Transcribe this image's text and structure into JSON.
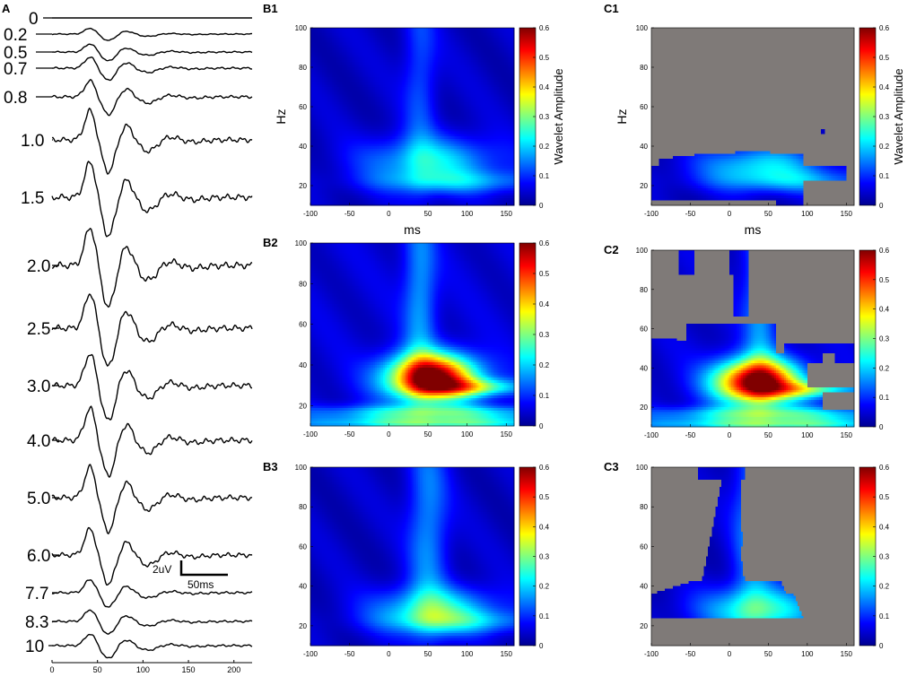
{
  "colors": {
    "nosig_gray": "#7f7a78",
    "trace": "#000000"
  },
  "panelA": {
    "label": "A",
    "xticks": [
      "0",
      "50",
      "100",
      "150",
      "200"
    ],
    "xlim": [
      0,
      220
    ],
    "scalebar": {
      "y_label": "2uV",
      "x_label": "50ms"
    },
    "traces": [
      {
        "label": "0",
        "amp": 0
      },
      {
        "label": "0.2",
        "amp": 0.2
      },
      {
        "label": "0.5",
        "amp": 0.28
      },
      {
        "label": "0.7",
        "amp": 0.38
      },
      {
        "label": "0.8",
        "amp": 0.55
      },
      {
        "label": "1.0",
        "amp": 1.0
      },
      {
        "label": "1.5",
        "amp": 1.2
      },
      {
        "label": "2.0",
        "amp": 1.3
      },
      {
        "label": "2.5",
        "amp": 1.2
      },
      {
        "label": "3.0",
        "amp": 1.1
      },
      {
        "label": "4.0",
        "amp": 1.1
      },
      {
        "label": "5.0",
        "amp": 1.05
      },
      {
        "label": "6.0",
        "amp": 0.9
      },
      {
        "label": "7.7",
        "amp": 0.45
      },
      {
        "label": "8.3",
        "amp": 0.4
      },
      {
        "label": "10",
        "amp": 0.4
      }
    ]
  },
  "heatmap_common": {
    "xticks": [
      "-100",
      "-50",
      "0",
      "50",
      "100",
      "150"
    ],
    "yticks": [
      "20",
      "40",
      "60",
      "80",
      "100"
    ],
    "cbticks": [
      "0",
      "0.1",
      "0.2",
      "0.3",
      "0.4",
      "0.5",
      "0.6"
    ],
    "xlabel": "ms",
    "ylabel": "Hz",
    "cblabel": "Wavelet Amplitude"
  },
  "chart_data": [
    {
      "type": "line",
      "title": "A",
      "xlabel": "",
      "ylabel": "",
      "xlim": [
        0,
        220
      ],
      "series_names": [
        "0",
        "0.2",
        "0.5",
        "0.7",
        "0.8",
        "1.0",
        "1.5",
        "2.0",
        "2.5",
        "3.0",
        "4.0",
        "5.0",
        "6.0",
        "7.7",
        "8.3",
        "10"
      ],
      "scalebar": {
        "y": "2uV",
        "x": "50ms"
      }
    },
    {
      "type": "heatmap",
      "title": "B1",
      "xlabel": "ms",
      "ylabel": "Hz",
      "xlim": [
        -100,
        160
      ],
      "ylim": [
        10,
        100
      ],
      "zlim": [
        0,
        0.6
      ],
      "colorbar_label": "Wavelet Amplitude",
      "blobs": [
        {
          "t": 55,
          "f": 32,
          "amp": 0.17,
          "st": 60,
          "sf": 9
        },
        {
          "t": 100,
          "f": 22,
          "amp": 0.1,
          "st": 80,
          "sf": 4
        },
        {
          "t": 40,
          "f": 75,
          "amp": 0.08,
          "st": 15,
          "sf": 40
        }
      ],
      "base": 0.04,
      "mask": "none"
    },
    {
      "type": "heatmap",
      "title": "C1",
      "xlabel": "ms",
      "ylabel": "Hz",
      "xlim": [
        -100,
        160
      ],
      "ylim": [
        10,
        100
      ],
      "zlim": [
        0,
        0.6
      ],
      "colorbar_label": "Wavelet Amplitude",
      "blobs": [
        {
          "t": 40,
          "f": 30,
          "amp": 0.17,
          "st": 55,
          "sf": 7
        },
        {
          "t": 100,
          "f": 22,
          "amp": 0.1,
          "st": 80,
          "sf": 4
        }
      ],
      "base": 0.04,
      "mask": "c1"
    },
    {
      "type": "heatmap",
      "title": "B2",
      "xlabel": "",
      "ylabel": "",
      "xlim": [
        -100,
        160
      ],
      "ylim": [
        10,
        100
      ],
      "zlim": [
        0,
        0.6
      ],
      "blobs": [
        {
          "t": 55,
          "f": 34,
          "amp": 0.57,
          "st": 40,
          "sf": 8
        },
        {
          "t": 110,
          "f": 29,
          "amp": 0.2,
          "st": 45,
          "sf": 3
        },
        {
          "t": 60,
          "f": 16,
          "amp": 0.2,
          "st": 110,
          "sf": 3
        },
        {
          "t": 60,
          "f": 11,
          "amp": 0.18,
          "st": 120,
          "sf": 2
        },
        {
          "t": 40,
          "f": 75,
          "amp": 0.12,
          "st": 15,
          "sf": 35
        }
      ],
      "base": 0.05,
      "mask": "none"
    },
    {
      "type": "heatmap",
      "title": "C2",
      "xlabel": "",
      "ylabel": "",
      "xlim": [
        -100,
        160
      ],
      "ylim": [
        10,
        100
      ],
      "zlim": [
        0,
        0.6
      ],
      "blobs": [
        {
          "t": 35,
          "f": 33,
          "amp": 0.57,
          "st": 38,
          "sf": 8
        },
        {
          "t": 110,
          "f": 29,
          "amp": 0.2,
          "st": 45,
          "sf": 3
        },
        {
          "t": 60,
          "f": 16,
          "amp": 0.2,
          "st": 110,
          "sf": 3
        },
        {
          "t": 60,
          "f": 11,
          "amp": 0.18,
          "st": 120,
          "sf": 2
        },
        {
          "t": 40,
          "f": 75,
          "amp": 0.12,
          "st": 15,
          "sf": 35
        }
      ],
      "base": 0.05,
      "mask": "c2"
    },
    {
      "type": "heatmap",
      "title": "B3",
      "xlabel": "",
      "ylabel": "",
      "xlim": [
        -100,
        160
      ],
      "ylim": [
        10,
        100
      ],
      "zlim": [
        0,
        0.6
      ],
      "blobs": [
        {
          "t": 60,
          "f": 28,
          "amp": 0.2,
          "st": 55,
          "sf": 8
        },
        {
          "t": 50,
          "f": 70,
          "amp": 0.12,
          "st": 18,
          "sf": 40
        },
        {
          "t": 100,
          "f": 22,
          "amp": 0.1,
          "st": 70,
          "sf": 4
        }
      ],
      "base": 0.04,
      "mask": "none"
    },
    {
      "type": "heatmap",
      "title": "C3",
      "xlabel": "",
      "ylabel": "",
      "xlim": [
        -100,
        160
      ],
      "ylim": [
        10,
        100
      ],
      "zlim": [
        0,
        0.6
      ],
      "blobs": [
        {
          "t": 40,
          "f": 28,
          "amp": 0.2,
          "st": 55,
          "sf": 8
        },
        {
          "t": 30,
          "f": 70,
          "amp": 0.12,
          "st": 18,
          "sf": 40
        }
      ],
      "base": 0.04,
      "mask": "c3"
    }
  ]
}
